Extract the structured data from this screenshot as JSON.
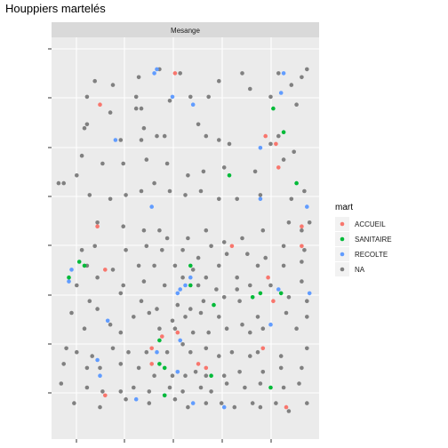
{
  "chart_data": {
    "type": "scatter",
    "title": "Houppiers martelés",
    "facet_label": "Mesange",
    "xlabel": "",
    "ylabel": "",
    "xlim": [
      0,
      100
    ],
    "ylim": [
      0,
      100
    ],
    "grid": true,
    "legend_position": "right",
    "legend": {
      "title": "mart",
      "entries": [
        {
          "label": "ACCUEIL",
          "color": "#F8766D"
        },
        {
          "label": "SANITAIRE",
          "color": "#00BA38"
        },
        {
          "label": "RECOLTE",
          "color": "#619CFF"
        },
        {
          "label": "NA",
          "color": "#808080"
        }
      ]
    },
    "series": [
      {
        "name": "ACCUEIL",
        "color": "#F8766D",
        "points": [
          [
            46,
            92
          ],
          [
            17,
            84
          ],
          [
            81,
            76
          ],
          [
            85,
            74
          ],
          [
            86,
            68
          ],
          [
            95,
            53
          ],
          [
            16,
            53
          ],
          [
            68,
            48
          ],
          [
            95,
            48
          ],
          [
            19,
            42
          ],
          [
            82,
            40
          ],
          [
            84,
            34
          ],
          [
            47,
            26
          ],
          [
            41,
            25
          ],
          [
            37,
            22
          ],
          [
            80,
            22
          ],
          [
            55,
            18
          ],
          [
            58,
            17
          ],
          [
            37,
            18
          ],
          [
            19,
            10
          ],
          [
            89,
            7
          ]
        ]
      },
      {
        "name": "SANITAIRE",
        "color": "#00BA38",
        "points": [
          [
            84,
            83
          ],
          [
            88,
            77
          ],
          [
            67,
            66
          ],
          [
            93,
            64
          ],
          [
            11,
            43
          ],
          [
            9,
            44
          ],
          [
            5,
            40
          ],
          [
            52,
            43
          ],
          [
            52,
            38
          ],
          [
            79,
            36
          ],
          [
            76,
            35
          ],
          [
            87,
            36
          ],
          [
            61,
            33
          ],
          [
            40,
            24
          ],
          [
            42,
            17
          ],
          [
            40,
            18
          ],
          [
            60,
            15
          ],
          [
            42,
            10
          ],
          [
            83,
            12
          ]
        ]
      },
      {
        "name": "RECOLTE",
        "color": "#619CFF",
        "points": [
          [
            38,
            92
          ],
          [
            39,
            93
          ],
          [
            88,
            92
          ],
          [
            87,
            87
          ],
          [
            45,
            86
          ],
          [
            53,
            84
          ],
          [
            23,
            75
          ],
          [
            79,
            73
          ],
          [
            79,
            60
          ],
          [
            37,
            58
          ],
          [
            97,
            58
          ],
          [
            6,
            42
          ],
          [
            52,
            40
          ],
          [
            50,
            38
          ],
          [
            48,
            37
          ],
          [
            47,
            36
          ],
          [
            86,
            37
          ],
          [
            98,
            36
          ],
          [
            5,
            39
          ],
          [
            20,
            29
          ],
          [
            83,
            28
          ],
          [
            48,
            24
          ],
          [
            39,
            21
          ],
          [
            16,
            19
          ],
          [
            47,
            16
          ],
          [
            17,
            15
          ],
          [
            31,
            9
          ],
          [
            53,
            8
          ],
          [
            65,
            7
          ],
          [
            42,
            10
          ]
        ]
      },
      {
        "name": "NA",
        "color": "#808080",
        "points": [
          [
            15,
            90
          ],
          [
            22,
            89
          ],
          [
            32,
            91
          ],
          [
            40,
            93
          ],
          [
            48,
            92
          ],
          [
            63,
            90
          ],
          [
            72,
            92
          ],
          [
            86,
            92
          ],
          [
            95,
            91
          ],
          [
            97,
            93
          ],
          [
            91,
            89
          ],
          [
            12,
            86
          ],
          [
            21,
            82
          ],
          [
            31,
            86
          ],
          [
            31,
            83
          ],
          [
            33,
            83
          ],
          [
            44,
            85
          ],
          [
            52,
            86
          ],
          [
            59,
            86
          ],
          [
            75,
            88
          ],
          [
            83,
            86
          ],
          [
            93,
            84
          ],
          [
            11,
            78
          ],
          [
            12,
            79
          ],
          [
            25,
            75
          ],
          [
            33,
            75
          ],
          [
            34,
            78
          ],
          [
            39,
            76
          ],
          [
            42,
            76
          ],
          [
            55,
            79
          ],
          [
            58,
            76
          ],
          [
            63,
            75
          ],
          [
            67,
            74
          ],
          [
            86,
            76
          ],
          [
            83,
            74
          ],
          [
            10,
            71
          ],
          [
            18,
            69
          ],
          [
            26,
            69
          ],
          [
            35,
            70
          ],
          [
            43,
            69
          ],
          [
            51,
            66
          ],
          [
            57,
            67
          ],
          [
            65,
            68
          ],
          [
            77,
            67
          ],
          [
            88,
            70
          ],
          [
            92,
            72
          ],
          [
            1,
            64
          ],
          [
            3,
            64
          ],
          [
            8,
            66
          ],
          [
            13,
            61
          ],
          [
            21,
            60
          ],
          [
            27,
            61
          ],
          [
            33,
            62
          ],
          [
            38,
            64
          ],
          [
            44,
            62
          ],
          [
            50,
            61
          ],
          [
            56,
            62
          ],
          [
            63,
            60
          ],
          [
            70,
            60
          ],
          [
            79,
            61
          ],
          [
            91,
            60
          ],
          [
            96,
            62
          ],
          [
            16,
            54
          ],
          [
            26,
            53
          ],
          [
            34,
            52
          ],
          [
            40,
            52
          ],
          [
            43,
            50
          ],
          [
            51,
            50
          ],
          [
            58,
            52
          ],
          [
            65,
            49
          ],
          [
            72,
            50
          ],
          [
            80,
            52
          ],
          [
            90,
            54
          ],
          [
            95,
            52
          ],
          [
            98,
            54
          ],
          [
            10,
            47
          ],
          [
            15,
            48
          ],
          [
            27,
            47
          ],
          [
            35,
            48
          ],
          [
            41,
            47
          ],
          [
            49,
            47
          ],
          [
            55,
            45
          ],
          [
            60,
            48
          ],
          [
            66,
            46
          ],
          [
            74,
            46
          ],
          [
            81,
            45
          ],
          [
            88,
            48
          ],
          [
            96,
            47
          ],
          [
            12,
            43
          ],
          [
            22,
            42
          ],
          [
            32,
            43
          ],
          [
            38,
            43
          ],
          [
            46,
            43
          ],
          [
            53,
            42
          ],
          [
            58,
            40
          ],
          [
            63,
            43
          ],
          [
            70,
            40
          ],
          [
            78,
            43
          ],
          [
            88,
            43
          ],
          [
            95,
            44
          ],
          [
            8,
            38
          ],
          [
            16,
            40
          ],
          [
            26,
            38
          ],
          [
            34,
            39
          ],
          [
            42,
            38
          ],
          [
            49,
            40
          ],
          [
            55,
            38
          ],
          [
            62,
            37
          ],
          [
            70,
            37
          ],
          [
            75,
            38
          ],
          [
            83,
            38
          ],
          [
            95,
            39
          ],
          [
            97,
            34
          ],
          [
            13,
            34
          ],
          [
            25,
            36
          ],
          [
            33,
            34
          ],
          [
            39,
            32
          ],
          [
            47,
            33
          ],
          [
            52,
            32
          ],
          [
            57,
            34
          ],
          [
            65,
            35
          ],
          [
            71,
            34
          ],
          [
            90,
            35
          ],
          [
            6,
            31
          ],
          [
            16,
            32
          ],
          [
            30,
            30
          ],
          [
            36,
            31
          ],
          [
            45,
            29
          ],
          [
            50,
            30
          ],
          [
            56,
            31
          ],
          [
            63,
            30
          ],
          [
            72,
            28
          ],
          [
            78,
            30
          ],
          [
            89,
            31
          ],
          [
            97,
            30
          ],
          [
            11,
            27
          ],
          [
            21,
            28
          ],
          [
            25,
            26
          ],
          [
            40,
            27
          ],
          [
            46,
            27
          ],
          [
            53,
            26
          ],
          [
            59,
            26
          ],
          [
            66,
            27
          ],
          [
            75,
            26
          ],
          [
            80,
            27
          ],
          [
            93,
            27
          ],
          [
            4,
            22
          ],
          [
            8,
            21
          ],
          [
            14,
            20
          ],
          [
            22,
            22
          ],
          [
            28,
            21
          ],
          [
            35,
            21
          ],
          [
            43,
            21
          ],
          [
            49,
            23
          ],
          [
            52,
            21
          ],
          [
            58,
            22
          ],
          [
            63,
            20
          ],
          [
            68,
            21
          ],
          [
            75,
            20
          ],
          [
            78,
            21
          ],
          [
            87,
            20
          ],
          [
            97,
            22
          ],
          [
            3,
            18
          ],
          [
            12,
            17
          ],
          [
            17,
            17
          ],
          [
            25,
            18
          ],
          [
            32,
            17
          ],
          [
            38,
            15
          ],
          [
            45,
            15
          ],
          [
            50,
            15
          ],
          [
            54,
            16
          ],
          [
            58,
            15
          ],
          [
            65,
            15
          ],
          [
            71,
            16
          ],
          [
            80,
            16
          ],
          [
            87,
            17
          ],
          [
            95,
            17
          ],
          [
            2,
            13
          ],
          [
            12,
            12
          ],
          [
            18,
            11
          ],
          [
            25,
            11
          ],
          [
            30,
            12
          ],
          [
            36,
            11
          ],
          [
            44,
            12
          ],
          [
            49,
            11
          ],
          [
            56,
            12
          ],
          [
            60,
            11
          ],
          [
            66,
            13
          ],
          [
            73,
            12
          ],
          [
            79,
            13
          ],
          [
            88,
            12
          ],
          [
            94,
            13
          ],
          [
            7,
            8
          ],
          [
            17,
            7
          ],
          [
            27,
            9
          ],
          [
            36,
            8
          ],
          [
            46,
            9
          ],
          [
            51,
            7
          ],
          [
            58,
            8
          ],
          [
            64,
            8
          ],
          [
            69,
            7
          ],
          [
            76,
            8
          ],
          [
            79,
            7
          ],
          [
            85,
            8
          ],
          [
            90,
            6
          ],
          [
            97,
            8
          ]
        ]
      }
    ]
  }
}
